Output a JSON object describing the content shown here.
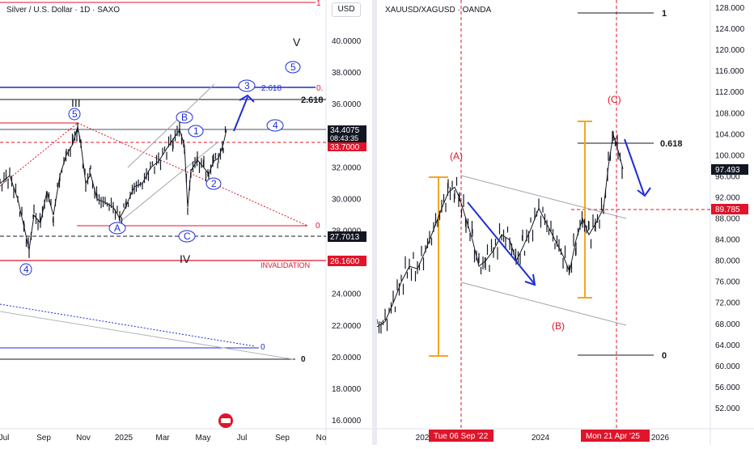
{
  "chart_data": [
    {
      "type": "candlestick",
      "title": "Silver / U.S. Dollar · 1D · SAXO",
      "currency_button": "USD",
      "y_ticks": [
        "40.0000",
        "38.0000",
        "36.0000",
        "34.0000",
        "32.0000",
        "30.0000",
        "28.0000",
        "26.0000",
        "24.0000",
        "22.0000",
        "20.0000",
        "18.0000",
        "16.0000"
      ],
      "x_ticks": [
        "Jul",
        "Sep",
        "Nov",
        "2025",
        "Mar",
        "May",
        "Jul",
        "Sep",
        "No"
      ],
      "price_badges": [
        {
          "label": "34.4075",
          "sub": "08:43:35",
          "color": "#131722"
        },
        {
          "label": "33.7000",
          "color": "#e0142a"
        },
        {
          "label": "27.7013",
          "color": "#131722"
        },
        {
          "label": "26.1600",
          "color": "#e0142a"
        }
      ],
      "levels": {
        "fib_2618": "2.618",
        "upper_1": "1",
        "zero": "0",
        "invalidation": "INVALIDATION"
      },
      "wave_labels": {
        "big_III": "III",
        "big_IV": "IV",
        "big_V": "V",
        "circ_5a": "5",
        "circ_4a": "4",
        "circ_B": "B",
        "circ_A": "A",
        "circ_C": "C",
        "circ_1": "1",
        "circ_2": "2",
        "circ_3": "3",
        "circ_4b": "4",
        "circ_5b": "5",
        "fib_2618_box": "2.618",
        "fib_0_box": "0.",
        "fib_0_lower": "0",
        "fib_0_channel": "0"
      },
      "series_path_points": [
        [
          0,
          31.0
        ],
        [
          12,
          31.5
        ],
        [
          22,
          30.0
        ],
        [
          30,
          28.2
        ],
        [
          36,
          26.8
        ],
        [
          42,
          29.0
        ],
        [
          50,
          28.5
        ],
        [
          58,
          30.5
        ],
        [
          66,
          29.0
        ],
        [
          74,
          31.5
        ],
        [
          82,
          32.8
        ],
        [
          90,
          33.5
        ],
        [
          96,
          34.6
        ],
        [
          100,
          33.5
        ],
        [
          106,
          31.0
        ],
        [
          112,
          31.6
        ],
        [
          120,
          30.0
        ],
        [
          130,
          29.8
        ],
        [
          140,
          29.5
        ],
        [
          148,
          28.8
        ],
        [
          156,
          29.6
        ],
        [
          166,
          30.8
        ],
        [
          176,
          31.0
        ],
        [
          186,
          32.0
        ],
        [
          196,
          32.4
        ],
        [
          206,
          33.2
        ],
        [
          214,
          33.8
        ],
        [
          222,
          34.4
        ],
        [
          228,
          33.4
        ],
        [
          232,
          29.5
        ],
        [
          236,
          31.8
        ],
        [
          244,
          32.5
        ],
        [
          252,
          32.0
        ],
        [
          258,
          31.6
        ],
        [
          264,
          32.4
        ],
        [
          270,
          32.6
        ],
        [
          276,
          33.5
        ],
        [
          280,
          34.4
        ]
      ]
    },
    {
      "type": "candlestick",
      "title": "XAUUSD/XAGUSD · OANDA",
      "y_ticks": [
        "128.000",
        "124.000",
        "120.000",
        "116.000",
        "112.000",
        "108.000",
        "104.000",
        "100.000",
        "96.000",
        "92.000",
        "88.000",
        "84.000",
        "80.000",
        "76.000",
        "72.000",
        "68.000",
        "64.000",
        "60.000",
        "56.000",
        "52.000"
      ],
      "x_ticks": [
        "202",
        "2024",
        "2026"
      ],
      "date_badges": [
        "Tue 06 Sep '22",
        "Mon 21 Apr '25"
      ],
      "price_badges": [
        {
          "label": "97.493",
          "color": "#131722"
        },
        {
          "label": "89.785",
          "color": "#e0142a"
        }
      ],
      "levels": {
        "top_1": "1",
        "fib_0618": "0.618",
        "bottom_0": "0"
      },
      "wave_labels": {
        "A": "(A)",
        "B": "(B)",
        "C": "(C)"
      },
      "series_path_points": [
        [
          0,
          67.5
        ],
        [
          10,
          68.5
        ],
        [
          20,
          72.0
        ],
        [
          30,
          76.0
        ],
        [
          40,
          79.0
        ],
        [
          50,
          78.5
        ],
        [
          60,
          82.0
        ],
        [
          70,
          86.0
        ],
        [
          80,
          90.0
        ],
        [
          88,
          93.0
        ],
        [
          96,
          94.0
        ],
        [
          102,
          92.0
        ],
        [
          110,
          88.0
        ],
        [
          118,
          84.0
        ],
        [
          126,
          79.0
        ],
        [
          134,
          80.0
        ],
        [
          144,
          82.0
        ],
        [
          154,
          85.0
        ],
        [
          164,
          84.0
        ],
        [
          172,
          80.0
        ],
        [
          180,
          82.5
        ],
        [
          190,
          86.0
        ],
        [
          200,
          90.0
        ],
        [
          210,
          87.0
        ],
        [
          220,
          84.0
        ],
        [
          230,
          81.0
        ],
        [
          238,
          78.0
        ],
        [
          246,
          84.0
        ],
        [
          254,
          88.0
        ],
        [
          262,
          85.0
        ],
        [
          270,
          87.0
        ],
        [
          280,
          90.0
        ],
        [
          286,
          98.0
        ],
        [
          292,
          104.0
        ],
        [
          298,
          101.0
        ],
        [
          304,
          97.5
        ]
      ]
    }
  ]
}
